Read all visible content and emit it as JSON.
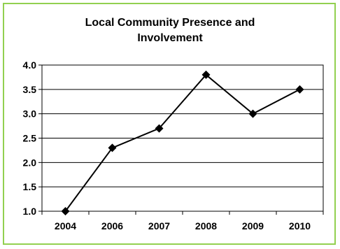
{
  "chart_data": {
    "type": "line",
    "title_lines": [
      "Local Community Presence and",
      "Involvement"
    ],
    "categories": [
      "2004",
      "2006",
      "2007",
      "2008",
      "2009",
      "2010"
    ],
    "y_tick_labels": [
      "4.0",
      "3.5",
      "3.0",
      "2.5",
      "2.0",
      "1.5",
      "1.0"
    ],
    "series": [
      {
        "values": [
          1.0,
          2.3,
          2.7,
          3.8,
          3.0,
          3.5
        ]
      }
    ],
    "ylim": [
      1.0,
      4.0
    ],
    "y_step": 0.5,
    "grid": true,
    "legend": "none",
    "marker": "diamond",
    "colors": {
      "line": "#000000",
      "grid": "#000000",
      "border": "#92d050"
    }
  }
}
